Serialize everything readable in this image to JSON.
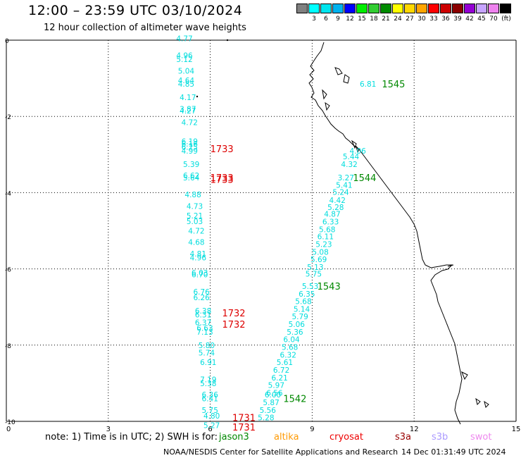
{
  "title": "12:00 – 23:59 UTC 03/10/2024",
  "subtitle": "12 hour collection of altimeter wave heights",
  "legend": {
    "unit": "(ft)",
    "bins": [
      {
        "color": "#808080",
        "label": ""
      },
      {
        "color": "#00ffff",
        "label": "3"
      },
      {
        "color": "#00e5ee",
        "label": "6"
      },
      {
        "color": "#00b2ee",
        "label": "9"
      },
      {
        "color": "#0000ff",
        "label": "12"
      },
      {
        "color": "#00ee00",
        "label": "15"
      },
      {
        "color": "#32cd32",
        "label": "18"
      },
      {
        "color": "#008b00",
        "label": "21"
      },
      {
        "color": "#ffff00",
        "label": "24"
      },
      {
        "color": "#ffd700",
        "label": "27"
      },
      {
        "color": "#ffa500",
        "label": "30"
      },
      {
        "color": "#ff0000",
        "label": "33"
      },
      {
        "color": "#cd0000",
        "label": "36"
      },
      {
        "color": "#8b0000",
        "label": "39"
      },
      {
        "color": "#9400d3",
        "label": "42"
      },
      {
        "color": "#c7a4ff",
        "label": "45"
      },
      {
        "color": "#ee82ee",
        "label": "70"
      },
      {
        "color": "#000000",
        "label": ""
      }
    ]
  },
  "axes": {
    "x_ticks": [
      "0",
      "3",
      "6",
      "9",
      "12",
      "15"
    ],
    "y_ticks": [
      "0",
      "-2",
      "-4",
      "-6",
      "-8",
      "-10"
    ]
  },
  "chart_data": {
    "type": "scatter",
    "xlim": [
      0,
      15
    ],
    "ylim": [
      -10,
      0
    ],
    "grid": true,
    "track_color": "#00dddd",
    "tracks": [
      {
        "name": "track-west",
        "points": [
          {
            "x": 5.0,
            "y": 0.05,
            "v": "4.77"
          },
          {
            "x": 5.0,
            "y": -0.4,
            "v": "4.96"
          },
          {
            "x": 5.0,
            "y": -0.5,
            "v": "5.12"
          },
          {
            "x": 5.05,
            "y": -0.8,
            "v": "5.04"
          },
          {
            "x": 5.05,
            "y": -1.05,
            "v": "4.64"
          },
          {
            "x": 5.05,
            "y": -1.15,
            "v": "4.85"
          },
          {
            "x": 5.1,
            "y": -1.5,
            "v": "4.17"
          },
          {
            "x": 5.1,
            "y": -1.8,
            "v": "3.87"
          },
          {
            "x": 5.1,
            "y": -1.85,
            "v": "4.27"
          },
          {
            "x": 5.15,
            "y": -2.15,
            "v": "4.72"
          },
          {
            "x": 5.15,
            "y": -2.65,
            "v": "6.19"
          },
          {
            "x": 5.15,
            "y": -2.72,
            "v": "6.16"
          },
          {
            "x": 5.15,
            "y": -2.8,
            "v": "6.25"
          },
          {
            "x": 5.15,
            "y": -2.9,
            "v": "4.99"
          },
          {
            "x": 5.2,
            "y": -3.25,
            "v": "5.39"
          },
          {
            "x": 5.2,
            "y": -3.55,
            "v": "6.62"
          },
          {
            "x": 5.2,
            "y": -3.6,
            "v": "5.64"
          },
          {
            "x": 5.25,
            "y": -4.05,
            "v": "4.88"
          },
          {
            "x": 5.3,
            "y": -4.35,
            "v": "4.73"
          },
          {
            "x": 5.3,
            "y": -4.6,
            "v": "5.21"
          },
          {
            "x": 5.3,
            "y": -4.75,
            "v": "5.03"
          },
          {
            "x": 5.35,
            "y": -5.0,
            "v": "4.72"
          },
          {
            "x": 5.35,
            "y": -5.3,
            "v": "4.68"
          },
          {
            "x": 5.4,
            "y": -5.6,
            "v": "4.81"
          },
          {
            "x": 5.4,
            "y": -5.7,
            "v": "4.96"
          },
          {
            "x": 5.45,
            "y": -6.1,
            "v": "6.03"
          },
          {
            "x": 5.45,
            "y": -6.15,
            "v": "6.70"
          },
          {
            "x": 5.5,
            "y": -6.6,
            "v": "6.76"
          },
          {
            "x": 5.5,
            "y": -6.75,
            "v": "6.26"
          },
          {
            "x": 5.55,
            "y": -7.1,
            "v": "6.38"
          },
          {
            "x": 5.55,
            "y": -7.2,
            "v": "6.31"
          },
          {
            "x": 5.55,
            "y": -7.4,
            "v": "6.37"
          },
          {
            "x": 5.6,
            "y": -7.55,
            "v": "6.63"
          },
          {
            "x": 5.6,
            "y": -7.65,
            "v": "7.13"
          },
          {
            "x": 5.65,
            "y": -8.0,
            "v": "5.80"
          },
          {
            "x": 5.65,
            "y": -8.2,
            "v": "5.74"
          },
          {
            "x": 5.7,
            "y": -8.45,
            "v": "6.91"
          },
          {
            "x": 5.7,
            "y": -8.9,
            "v": "7.19"
          },
          {
            "x": 5.7,
            "y": -9.0,
            "v": "5.38"
          },
          {
            "x": 5.75,
            "y": -9.3,
            "v": "6.36"
          },
          {
            "x": 5.75,
            "y": -9.4,
            "v": "6.41"
          },
          {
            "x": 5.75,
            "y": -9.7,
            "v": "5.75"
          },
          {
            "x": 5.8,
            "y": -9.85,
            "v": "4.80"
          },
          {
            "x": 5.8,
            "y": -10.1,
            "v": "5.27"
          }
        ]
      },
      {
        "name": "track-east",
        "points": [
          {
            "x": 10.1,
            "y": -2.9,
            "v": "4.06"
          },
          {
            "x": 9.9,
            "y": -3.05,
            "v": "5.44"
          },
          {
            "x": 9.85,
            "y": -3.25,
            "v": "4.32"
          },
          {
            "x": 9.75,
            "y": -3.6,
            "v": "3.27"
          },
          {
            "x": 9.7,
            "y": -3.8,
            "v": "5.41"
          },
          {
            "x": 9.6,
            "y": -3.98,
            "v": "5.24"
          },
          {
            "x": 9.5,
            "y": -4.2,
            "v": "4.42"
          },
          {
            "x": 9.45,
            "y": -4.38,
            "v": "5.28"
          },
          {
            "x": 9.35,
            "y": -4.56,
            "v": "4.87"
          },
          {
            "x": 9.3,
            "y": -4.76,
            "v": "6.33"
          },
          {
            "x": 9.2,
            "y": -4.96,
            "v": "5.68"
          },
          {
            "x": 9.15,
            "y": -5.15,
            "v": "6.11"
          },
          {
            "x": 9.1,
            "y": -5.35,
            "v": "5.23"
          },
          {
            "x": 9.0,
            "y": -5.55,
            "v": "5.08"
          },
          {
            "x": 8.95,
            "y": -5.75,
            "v": "5.69"
          },
          {
            "x": 8.85,
            "y": -5.95,
            "v": "5.13"
          },
          {
            "x": 8.8,
            "y": -6.13,
            "v": "5.75"
          },
          {
            "x": 8.7,
            "y": -6.45,
            "v": "5.53"
          },
          {
            "x": 8.6,
            "y": -6.65,
            "v": "6.35"
          },
          {
            "x": 8.5,
            "y": -6.85,
            "v": "5.68"
          },
          {
            "x": 8.45,
            "y": -7.05,
            "v": "5.14"
          },
          {
            "x": 8.4,
            "y": -7.25,
            "v": "5.79"
          },
          {
            "x": 8.3,
            "y": -7.45,
            "v": "5.06"
          },
          {
            "x": 8.25,
            "y": -7.65,
            "v": "5.36"
          },
          {
            "x": 8.15,
            "y": -7.85,
            "v": "6.04"
          },
          {
            "x": 8.1,
            "y": -8.05,
            "v": "5.68"
          },
          {
            "x": 8.05,
            "y": -8.25,
            "v": "6.32"
          },
          {
            "x": 7.95,
            "y": -8.45,
            "v": "5.61"
          },
          {
            "x": 7.85,
            "y": -8.65,
            "v": "6.72"
          },
          {
            "x": 7.8,
            "y": -8.85,
            "v": "6.21"
          },
          {
            "x": 7.7,
            "y": -9.05,
            "v": "5.97"
          },
          {
            "x": 7.65,
            "y": -9.25,
            "v": "6.56"
          },
          {
            "x": 7.6,
            "y": -9.3,
            "v": "6.00"
          },
          {
            "x": 7.55,
            "y": -9.5,
            "v": "5.87"
          },
          {
            "x": 7.45,
            "y": -9.7,
            "v": "5.56"
          },
          {
            "x": 7.4,
            "y": -9.9,
            "v": "5.28"
          },
          {
            "x": 10.4,
            "y": -1.15,
            "v": "6.81"
          }
        ]
      }
    ],
    "time_labels": [
      {
        "x": 6.0,
        "y": -2.85,
        "t": "1733",
        "color": "#dd0000"
      },
      {
        "x": 6.0,
        "y": -3.6,
        "t": "1733",
        "color": "#dd0000"
      },
      {
        "x": 6.0,
        "y": -3.65,
        "t": "1733",
        "color": "#dd0000"
      },
      {
        "x": 6.35,
        "y": -7.15,
        "t": "1732",
        "color": "#dd0000"
      },
      {
        "x": 6.35,
        "y": -7.45,
        "t": "1732",
        "color": "#dd0000"
      },
      {
        "x": 6.65,
        "y": -9.9,
        "t": "1731",
        "color": "#dd0000"
      },
      {
        "x": 6.65,
        "y": -10.15,
        "t": "1731",
        "color": "#dd0000"
      },
      {
        "x": 11.05,
        "y": -1.15,
        "t": "1545",
        "color": "#008800"
      },
      {
        "x": 10.2,
        "y": -3.6,
        "t": "1544",
        "color": "#008800"
      },
      {
        "x": 9.15,
        "y": -6.45,
        "t": "1543",
        "color": "#008800"
      },
      {
        "x": 8.15,
        "y": -9.4,
        "t": "1542",
        "color": "#008800"
      }
    ]
  },
  "note": "note:  1) Time is in UTC; 2) SWH is for:",
  "satellites": [
    {
      "name": "jason3",
      "color": "#008800"
    },
    {
      "name": "altika",
      "color": "#ff9900"
    },
    {
      "name": "cryosat",
      "color": "#ee0000"
    },
    {
      "name": "s3a",
      "color": "#990000"
    },
    {
      "name": "s3b",
      "color": "#aa99ff"
    },
    {
      "name": "swot",
      "color": "#ee88ee"
    }
  ],
  "footer": "NOAA/NESDIS Center for Satellite Applications and Research",
  "generated": "14 Dec 01:31:49 UTC 2024"
}
